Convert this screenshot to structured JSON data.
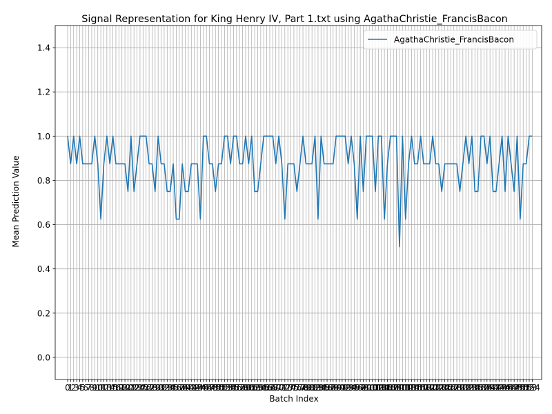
{
  "chart_data": {
    "type": "line",
    "title": "Signal Representation for King Henry IV, Part 1.txt using AgathaChristie_FrancisBacon",
    "xlabel": "Batch Index",
    "ylabel": "Mean Prediction Value",
    "xlim": [
      0,
      153
    ],
    "ylim": [
      -0.1,
      1.5
    ],
    "yticks": [
      0.0,
      0.2,
      0.4,
      0.6,
      0.8,
      1.0,
      1.2,
      1.4
    ],
    "ytick_labels": [
      "0.0",
      "0.2",
      "0.4",
      "0.6",
      "0.8",
      "1.0",
      "1.2",
      "1.4"
    ],
    "grid": true,
    "legend": "top-right",
    "series": [
      {
        "name": "AgathaChristie_FrancisBacon",
        "color": "#1f77b4",
        "values": [
          1.0,
          0.875,
          1.0,
          0.875,
          1.0,
          0.875,
          0.875,
          0.875,
          0.875,
          1.0,
          0.875,
          0.625,
          0.875,
          1.0,
          0.875,
          1.0,
          0.875,
          0.875,
          0.875,
          0.875,
          0.75,
          1.0,
          0.75,
          0.875,
          1.0,
          1.0,
          1.0,
          0.875,
          0.875,
          0.75,
          1.0,
          0.875,
          0.875,
          0.75,
          0.75,
          0.875,
          0.625,
          0.625,
          0.875,
          0.75,
          0.75,
          0.875,
          0.875,
          0.875,
          0.625,
          1.0,
          1.0,
          0.875,
          0.875,
          0.75,
          0.875,
          0.875,
          1.0,
          1.0,
          0.875,
          1.0,
          1.0,
          0.875,
          0.875,
          1.0,
          0.875,
          1.0,
          0.75,
          0.75,
          0.875,
          1.0,
          1.0,
          1.0,
          1.0,
          0.875,
          1.0,
          0.875,
          0.625,
          0.875,
          0.875,
          0.875,
          0.75,
          0.875,
          1.0,
          0.875,
          0.875,
          0.875,
          1.0,
          0.625,
          1.0,
          0.875,
          0.875,
          0.875,
          0.875,
          1.0,
          1.0,
          1.0,
          1.0,
          0.875,
          1.0,
          0.875,
          0.625,
          1.0,
          0.75,
          1.0,
          1.0,
          1.0,
          0.75,
          1.0,
          1.0,
          0.625,
          0.875,
          1.0,
          1.0,
          1.0,
          0.5,
          1.0,
          0.625,
          0.875,
          1.0,
          0.875,
          0.875,
          1.0,
          0.875,
          0.875,
          0.875,
          1.0,
          0.875,
          0.875,
          0.75,
          0.875,
          0.875,
          0.875,
          0.875,
          0.875,
          0.75,
          0.875,
          1.0,
          0.875,
          1.0,
          0.75,
          0.75,
          1.0,
          1.0,
          0.875,
          1.0,
          0.75,
          0.75,
          0.875,
          1.0,
          0.75,
          1.0,
          0.875,
          0.75,
          1.0,
          0.625,
          0.875,
          0.875,
          1.0,
          1.0
        ]
      }
    ]
  }
}
